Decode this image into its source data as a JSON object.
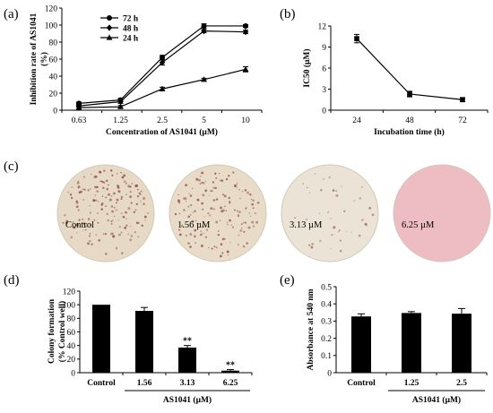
{
  "figure": {
    "panels": {
      "a": {
        "label": "(a)"
      },
      "b": {
        "label": "(b)"
      },
      "c": {
        "label": "(c)"
      },
      "d": {
        "label": "(d)"
      },
      "e": {
        "label": "(e)"
      }
    },
    "colony_images": [
      {
        "label": "Control",
        "dots": 170,
        "bg": "#e6d9c5",
        "dot": "#9a5b4e"
      },
      {
        "label": "1.56 µM",
        "dots": 150,
        "bg": "#e8dcc9",
        "dot": "#a05e52"
      },
      {
        "label": "3.13 µM",
        "dots": 40,
        "bg": "#eae3d6",
        "dot": "#b57a70"
      },
      {
        "label": "6.25 µM",
        "dots": 0,
        "bg": "#eebdc3",
        "dot": "#d08890"
      }
    ]
  },
  "chart_data": [
    {
      "panel": "a",
      "type": "line",
      "x": [
        "0.63",
        "1.25",
        "2.5",
        "5",
        "10"
      ],
      "series": [
        {
          "name": "72 h",
          "marker": "circle",
          "values": [
            8,
            12,
            62,
            99,
            99
          ],
          "errors": [
            1.5,
            2,
            2.5,
            2.5,
            1.5
          ]
        },
        {
          "name": "48 h",
          "marker": "diamond",
          "values": [
            5,
            10,
            56,
            93,
            92
          ],
          "errors": [
            1.5,
            2,
            3,
            2,
            2
          ]
        },
        {
          "name": "24 h",
          "marker": "triangle",
          "values": [
            3,
            4,
            25,
            36,
            48
          ],
          "errors": [
            1.5,
            1.5,
            2,
            1.5,
            3
          ]
        }
      ],
      "xlabel": "Concentration of AS1041 (μM)",
      "ylabel": [
        "Inhibition rate of AS1041",
        "(%)"
      ],
      "ylim": [
        0,
        120
      ],
      "yticks": [
        0,
        20,
        40,
        60,
        80,
        100,
        120
      ],
      "legend": "top-left"
    },
    {
      "panel": "b",
      "type": "line",
      "x": [
        "24",
        "48",
        "72"
      ],
      "series": [
        {
          "values": [
            10.2,
            2.3,
            1.5
          ],
          "errors": [
            0.6,
            0.4,
            0.3
          ]
        }
      ],
      "xlabel": "Incubation time (h)",
      "ylabel": "IC50 (μM)",
      "ylim": [
        0,
        12
      ],
      "yticks": [
        0,
        3,
        6,
        9,
        12
      ]
    },
    {
      "panel": "d",
      "type": "bar",
      "categories": [
        "Control",
        "1.56",
        "3.13",
        "6.25"
      ],
      "values": [
        100,
        91,
        37,
        3
      ],
      "errors": [
        0,
        5,
        3,
        1.5
      ],
      "annotations": [
        "",
        "",
        "**",
        "**"
      ],
      "xlabel": "AS1041 (μM)",
      "ylabel": [
        "Colony formation",
        "(% Control well)"
      ],
      "ylim": [
        0,
        120
      ],
      "yticks": [
        0,
        20,
        40,
        60,
        80,
        100,
        120
      ]
    },
    {
      "panel": "e",
      "type": "bar",
      "categories": [
        "Control",
        "1.25",
        "2.5"
      ],
      "values": [
        0.327,
        0.347,
        0.343
      ],
      "errors": [
        0.015,
        0.008,
        0.03
      ],
      "xlabel": "AS1041 (μM)",
      "ylabel": "Absorbance at 540 nm",
      "ylim": [
        0,
        0.5
      ],
      "yticks": [
        "0",
        "0.1",
        "0.2",
        "0.3",
        "0.4",
        "0.5"
      ]
    }
  ]
}
